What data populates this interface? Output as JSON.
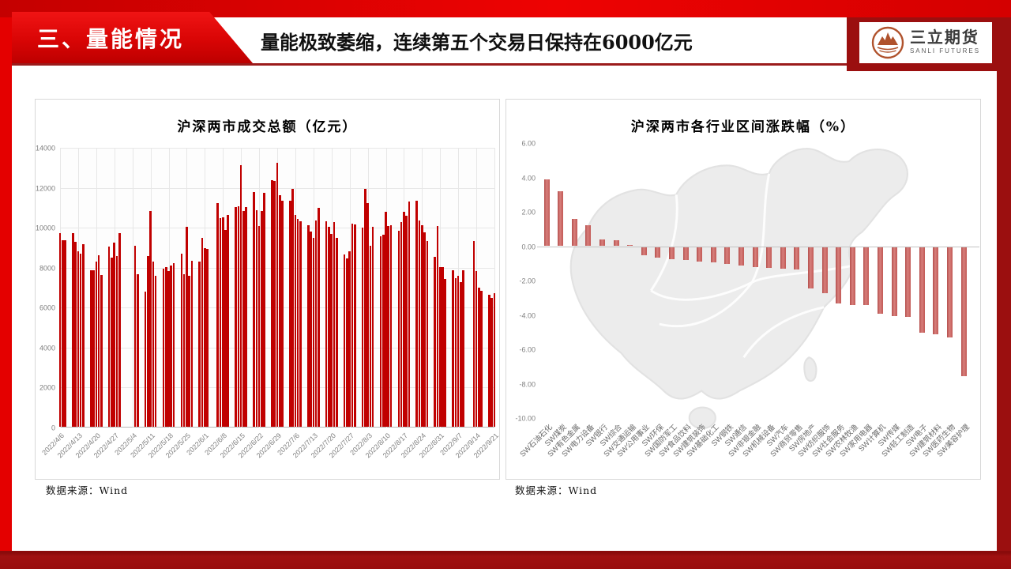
{
  "header": {
    "section_title": "三、量能情况",
    "headline": "量能极致萎缩，连续第五个交易日保持在6000亿元",
    "logo_cn": "三立期货",
    "logo_en": "SANLI FUTURES"
  },
  "panels": {
    "left_source": "数据来源：Wind",
    "right_source": "数据来源：Wind"
  },
  "colors": {
    "frame_bright_red": "#E40000",
    "frame_dark_red": "#9B0F0F",
    "banner_red": "#D90505",
    "volume_bar": "#C00000",
    "sector_bar": "#C9605C",
    "map_gray": "#ECECEC",
    "logo_terracotta": "#B0522C",
    "tick_gray": "#7F7F7F"
  },
  "chart_data": [
    {
      "type": "bar",
      "title": "沪深两市成交总额（亿元）",
      "xlabel": "",
      "ylabel": "",
      "ylim": [
        0,
        14000
      ],
      "ytick_labels": [
        "0",
        "2000",
        "4000",
        "6000",
        "8000",
        "10000",
        "12000",
        "14000"
      ],
      "grid": true,
      "legend": "none",
      "x_start": "2022/4/6",
      "x_end": "2022/9/21",
      "xtick_labels": [
        "2022/4/6",
        "2022/4/13",
        "2022/4/20",
        "2022/4/27",
        "2022/5/4",
        "2022/5/11",
        "2022/5/18",
        "2022/5/25",
        "2022/6/1",
        "2022/6/8",
        "2022/6/15",
        "2022/6/22",
        "2022/6/29",
        "2022/7/6",
        "2022/7/13",
        "2022/7/20",
        "2022/7/27",
        "2022/8/3",
        "2022/8/10",
        "2022/8/17",
        "2022/8/24",
        "2022/8/31",
        "2022/9/7",
        "2022/9/14",
        "2022/9/21"
      ],
      "dates": [
        "2022/4/6",
        "2022/4/7",
        "2022/4/8",
        "2022/4/11",
        "2022/4/12",
        "2022/4/13",
        "2022/4/14",
        "2022/4/15",
        "2022/4/18",
        "2022/4/19",
        "2022/4/20",
        "2022/4/21",
        "2022/4/22",
        "2022/4/25",
        "2022/4/26",
        "2022/4/27",
        "2022/4/28",
        "2022/4/29",
        "2022/5/5",
        "2022/5/6",
        "2022/5/9",
        "2022/5/10",
        "2022/5/11",
        "2022/5/12",
        "2022/5/13",
        "2022/5/16",
        "2022/5/17",
        "2022/5/18",
        "2022/5/19",
        "2022/5/20",
        "2022/5/23",
        "2022/5/24",
        "2022/5/25",
        "2022/5/26",
        "2022/5/27",
        "2022/5/30",
        "2022/5/31",
        "2022/6/1",
        "2022/6/2",
        "2022/6/6",
        "2022/6/7",
        "2022/6/8",
        "2022/6/9",
        "2022/6/10",
        "2022/6/13",
        "2022/6/14",
        "2022/6/15",
        "2022/6/16",
        "2022/6/17",
        "2022/6/20",
        "2022/6/21",
        "2022/6/22",
        "2022/6/23",
        "2022/6/24",
        "2022/6/27",
        "2022/6/28",
        "2022/6/29",
        "2022/6/30",
        "2022/7/1",
        "2022/7/4",
        "2022/7/5",
        "2022/7/6",
        "2022/7/7",
        "2022/7/8",
        "2022/7/11",
        "2022/7/12",
        "2022/7/13",
        "2022/7/14",
        "2022/7/15",
        "2022/7/18",
        "2022/7/19",
        "2022/7/20",
        "2022/7/21",
        "2022/7/22",
        "2022/7/25",
        "2022/7/26",
        "2022/7/27",
        "2022/7/28",
        "2022/7/29",
        "2022/8/1",
        "2022/8/2",
        "2022/8/3",
        "2022/8/4",
        "2022/8/5",
        "2022/8/8",
        "2022/8/9",
        "2022/8/10",
        "2022/8/11",
        "2022/8/12",
        "2022/8/15",
        "2022/8/16",
        "2022/8/17",
        "2022/8/18",
        "2022/8/19",
        "2022/8/22",
        "2022/8/23",
        "2022/8/24",
        "2022/8/25",
        "2022/8/26",
        "2022/8/29",
        "2022/8/30",
        "2022/8/31",
        "2022/9/1",
        "2022/9/2",
        "2022/9/5",
        "2022/9/6",
        "2022/9/7",
        "2022/9/8",
        "2022/9/9",
        "2022/9/13",
        "2022/9/14",
        "2022/9/15",
        "2022/9/16",
        "2022/9/19",
        "2022/9/20",
        "2022/9/21"
      ],
      "values": [
        9700,
        9350,
        9350,
        9700,
        9250,
        8800,
        8650,
        9150,
        7850,
        7850,
        8250,
        8600,
        7600,
        9000,
        8450,
        9200,
        8550,
        9700,
        9050,
        7650,
        6750,
        8550,
        10800,
        8250,
        7550,
        7900,
        8000,
        7800,
        8050,
        8200,
        8650,
        7650,
        10000,
        7550,
        8300,
        8250,
        9450,
        8950,
        8900,
        11200,
        10450,
        10500,
        9850,
        10600,
        11000,
        11050,
        13100,
        10800,
        11000,
        11750,
        10850,
        10050,
        10800,
        11700,
        12350,
        12300,
        13200,
        11600,
        11300,
        11300,
        11900,
        10600,
        10400,
        10300,
        10080,
        9750,
        9470,
        10330,
        10970,
        10280,
        10010,
        9640,
        10240,
        9440,
        8640,
        8410,
        8770,
        10170,
        10130,
        9970,
        11900,
        11200,
        9040,
        10010,
        9550,
        9600,
        10770,
        10040,
        10080,
        9800,
        10240,
        10750,
        10570,
        11280,
        11330,
        10310,
        10080,
        9730,
        9310,
        8510,
        10040,
        7970,
        8000,
        7410,
        7840,
        7440,
        7550,
        7240,
        7840,
        9300,
        7800,
        6950,
        6800,
        6600,
        6450,
        6700
      ]
    },
    {
      "type": "bar",
      "title": "沪深两市各行业区间涨跌幅（%）",
      "xlabel": "",
      "ylabel": "",
      "ylim": [
        -10,
        6
      ],
      "ytick_labels": [
        "6.00",
        "4.00",
        "2.00",
        "0.00",
        "-2.00",
        "-4.00",
        "-6.00",
        "-8.00",
        "-10.00"
      ],
      "grid": false,
      "legend": "none",
      "background": "china-map-silhouette",
      "categories": [
        "SW石油石化",
        "SW煤炭",
        "SW有色金属",
        "SW电力设备",
        "SW银行",
        "SW综合",
        "SW交通运输",
        "SW公用事业",
        "SW环保",
        "SW国防军工",
        "SW食品饮料",
        "SW建筑装饰",
        "SW基础化工",
        "SW钢铁",
        "SW通信",
        "SW非银金融",
        "SW机械设备",
        "SW汽车",
        "SW商贸零售",
        "SW房地产",
        "SW纺织服饰",
        "SW社会服务",
        "SW农林牧渔",
        "SW家用电器",
        "SW计算机",
        "SW传媒",
        "SW轻工制造",
        "SW电子",
        "SW建筑材料",
        "SW医药生物",
        "SW美容护理"
      ],
      "values": [
        3.9,
        3.2,
        1.6,
        1.2,
        0.4,
        0.35,
        0.05,
        -0.5,
        -0.6,
        -0.7,
        -0.75,
        -0.85,
        -0.9,
        -1.0,
        -1.1,
        -1.15,
        -1.2,
        -1.25,
        -1.3,
        -2.4,
        -2.7,
        -3.3,
        -3.4,
        -3.4,
        -3.9,
        -4.0,
        -4.05,
        -5.0,
        -5.1,
        -5.25,
        -7.5
      ]
    }
  ]
}
